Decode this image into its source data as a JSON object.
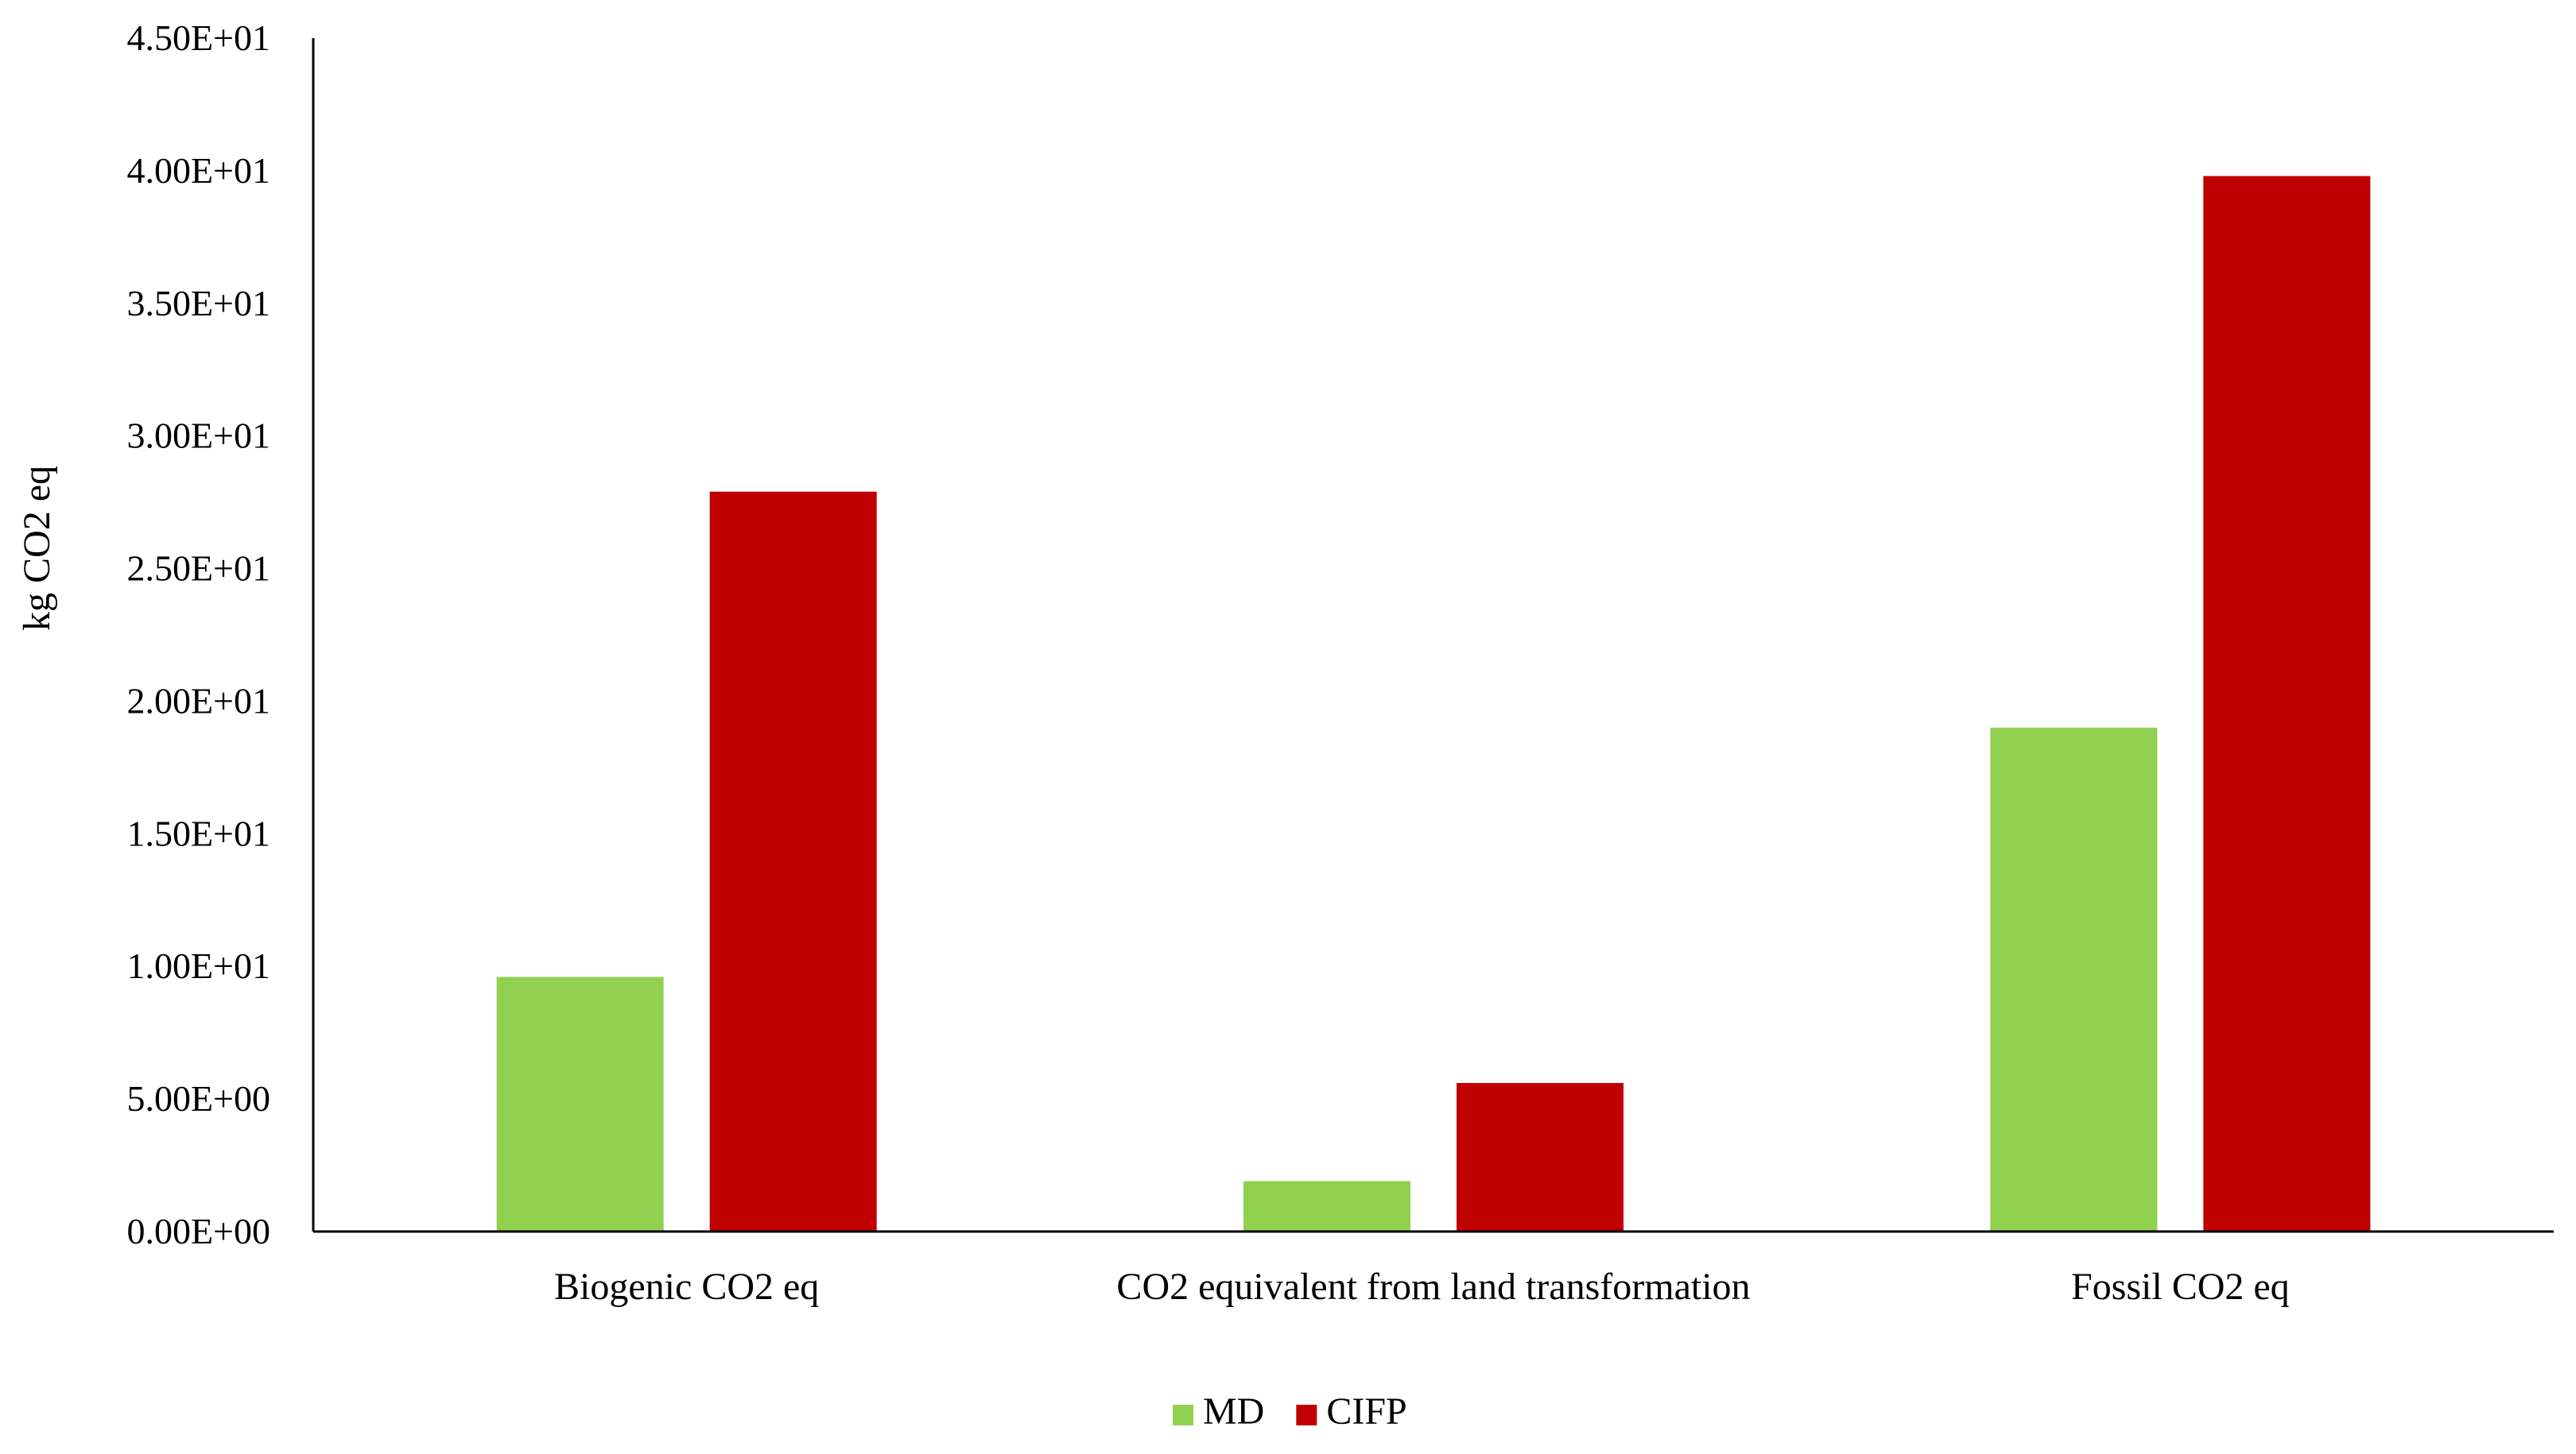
{
  "chart_data": {
    "type": "bar",
    "ylabel": "kg CO2 eq",
    "xlabel": "",
    "categories": [
      "Biogenic CO2 eq",
      "CO2 equivalent from land transformation",
      "Fossil CO2 eq"
    ],
    "series": [
      {
        "name": "MD",
        "values": [
          9.6,
          1.9,
          19.0
        ]
      },
      {
        "name": "CIFP",
        "values": [
          27.9,
          5.6,
          39.8
        ]
      }
    ],
    "ylim": [
      0,
      45
    ],
    "yticks": [
      0,
      5,
      10,
      15,
      20,
      25,
      30,
      35,
      40,
      45
    ],
    "ytick_labels": [
      "0.00E+00",
      "5.00E+00",
      "1.00E+01",
      "1.50E+01",
      "2.00E+01",
      "2.50E+01",
      "3.00E+01",
      "3.50E+01",
      "4.00E+01",
      "4.50E+01"
    ],
    "grid": false,
    "legend_position": "bottom",
    "colors": {
      "MD": "#92d050",
      "CIFP": "#c00000",
      "axis": "#000000"
    }
  }
}
